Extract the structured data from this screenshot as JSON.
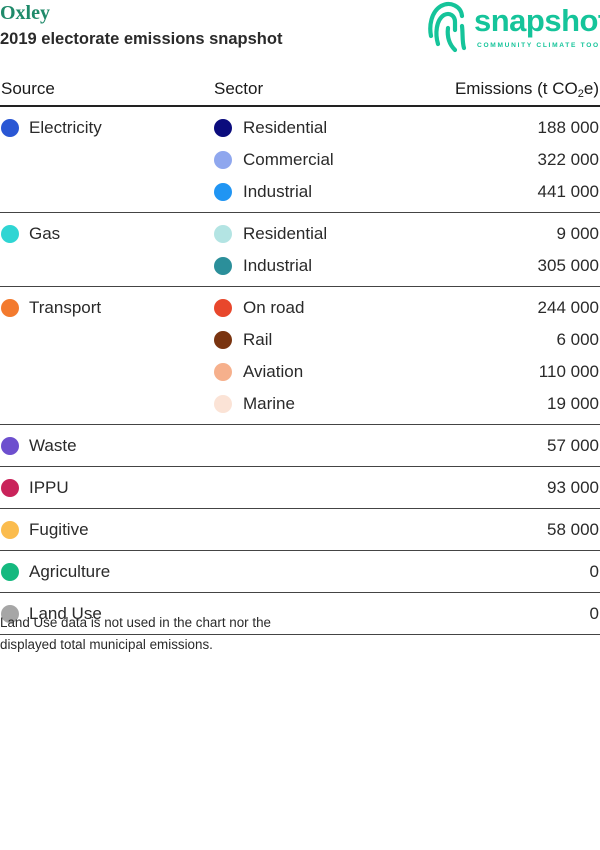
{
  "header": {
    "place": "Oxley",
    "subtitle": "2019 electorate emissions snapshot"
  },
  "logo": {
    "word": "snapshot",
    "tagline": "COMMUNITY CLIMATE TOOL",
    "color": "#15c49a"
  },
  "table": {
    "col_source": "Source",
    "col_sector": "Sector",
    "col_emissions_prefix": "Emissions (t CO",
    "col_emissions_sub": "2",
    "col_emissions_suffix": "e)",
    "groups": [
      {
        "source": "Electricity",
        "color": "#2a57d4",
        "rows": [
          {
            "sector": "Residential",
            "color": "#0b0c7d",
            "value": "188 000"
          },
          {
            "sector": "Commercial",
            "color": "#8fa7ee",
            "value": "322 000"
          },
          {
            "sector": "Industrial",
            "color": "#2095f3",
            "value": "441 000"
          }
        ]
      },
      {
        "source": "Gas",
        "color": "#2fd5d3",
        "rows": [
          {
            "sector": "Residential",
            "color": "#b3e4e3",
            "value": "9 000"
          },
          {
            "sector": "Industrial",
            "color": "#2b8f9a",
            "value": "305 000"
          }
        ]
      },
      {
        "source": "Transport",
        "color": "#f37a2e",
        "rows": [
          {
            "sector": "On road",
            "color": "#e8472c",
            "value": "244 000"
          },
          {
            "sector": "Rail",
            "color": "#7a3410",
            "value": "6 000"
          },
          {
            "sector": "Aviation",
            "color": "#f6b08c",
            "value": "110 000"
          },
          {
            "sector": "Marine",
            "color": "#fbe3d6",
            "value": "19 000"
          }
        ]
      },
      {
        "source": "Waste",
        "color": "#6d4fce",
        "rows": [
          {
            "sector": "",
            "color": "",
            "value": "57 000"
          }
        ]
      },
      {
        "source": "IPPU",
        "color": "#c9235a",
        "rows": [
          {
            "sector": "",
            "color": "",
            "value": "93 000"
          }
        ]
      },
      {
        "source": "Fugitive",
        "color": "#fbbc4e",
        "rows": [
          {
            "sector": "",
            "color": "",
            "value": "58 000"
          }
        ]
      },
      {
        "source": "Agriculture",
        "color": "#15b97f",
        "rows": [
          {
            "sector": "",
            "color": "",
            "value": "0"
          }
        ]
      },
      {
        "source": "Land Use",
        "color": "#a6a6a6",
        "rows": [
          {
            "sector": "",
            "color": "",
            "value": "0"
          }
        ]
      }
    ]
  },
  "note": "Land Use data is not used in the chart nor the displayed total municipal emissions."
}
